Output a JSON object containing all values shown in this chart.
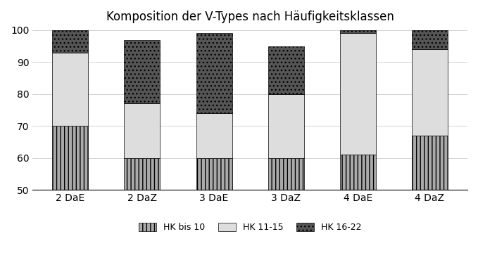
{
  "title": "Komposition der V-Types nach Häufigkeitsklassen",
  "categories": [
    "2 DaE",
    "2 DaZ",
    "3 DaE",
    "3 DaZ",
    "4 DaE",
    "4 DaZ"
  ],
  "hk_bis10": [
    20,
    10,
    10,
    10,
    11,
    17
  ],
  "hk_11_15": [
    23,
    17,
    14,
    20,
    38,
    27
  ],
  "hk_16_22": [
    7,
    20,
    25,
    15,
    1,
    6
  ],
  "base": 50,
  "ymin": 50,
  "ymax": 100,
  "yticks": [
    50,
    60,
    70,
    80,
    90,
    100
  ],
  "legend_labels": [
    "HK bis 10",
    "HK 11-15",
    "HK 16-22"
  ],
  "bar_width": 0.5,
  "figsize": [
    6.79,
    3.7
  ],
  "dpi": 100
}
